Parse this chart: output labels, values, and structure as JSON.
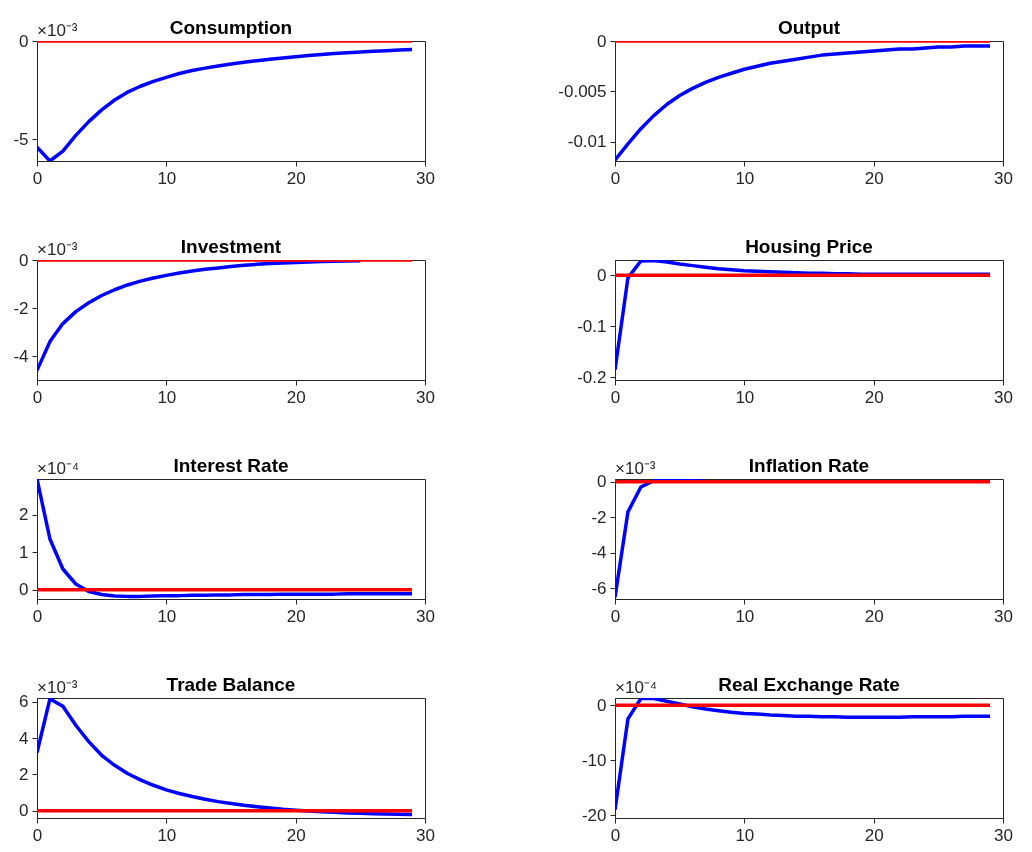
{
  "chart_data": [
    {
      "type": "line",
      "title": "Consumption",
      "annotations": [
        "×10⁻³"
      ],
      "x": [
        0,
        1,
        2,
        3,
        4,
        5,
        6,
        7,
        8,
        9,
        10,
        11,
        12,
        13,
        14,
        15,
        16,
        17,
        18,
        19,
        20,
        21,
        22,
        23,
        24,
        25,
        26,
        27,
        28,
        29
      ],
      "xlim": [
        0,
        30
      ],
      "xticks": [
        0,
        10,
        20,
        30
      ],
      "ylim": [
        -6.1,
        0
      ],
      "yticks": [
        -5,
        0
      ],
      "series": [
        {
          "color": "#0000ff",
          "values": [
            -5.4,
            -6.1,
            -5.6,
            -4.8,
            -4.1,
            -3.5,
            -3.0,
            -2.6,
            -2.3,
            -2.05,
            -1.85,
            -1.65,
            -1.5,
            -1.38,
            -1.27,
            -1.17,
            -1.08,
            -1.0,
            -0.93,
            -0.86,
            -0.8,
            -0.74,
            -0.69,
            -0.64,
            -0.6,
            -0.56,
            -0.52,
            -0.49,
            -0.46,
            -0.43
          ]
        },
        {
          "color": "#ff0000",
          "values": [
            0,
            0,
            0,
            0,
            0,
            0,
            0,
            0,
            0,
            0,
            0,
            0,
            0,
            0,
            0,
            0,
            0,
            0,
            0,
            0,
            0,
            0,
            0,
            0,
            0,
            0,
            0,
            0,
            0,
            0
          ]
        }
      ]
    },
    {
      "type": "line",
      "title": "Output",
      "x": [
        0,
        1,
        2,
        3,
        4,
        5,
        6,
        7,
        8,
        9,
        10,
        11,
        12,
        13,
        14,
        15,
        16,
        17,
        18,
        19,
        20,
        21,
        22,
        23,
        24,
        25,
        26,
        27,
        28,
        29
      ],
      "xlim": [
        0,
        30
      ],
      "xticks": [
        0,
        10,
        20,
        30
      ],
      "ylim": [
        -0.0119,
        0
      ],
      "yticks": [
        -0.01,
        -0.005,
        0
      ],
      "series": [
        {
          "color": "#0000ff",
          "values": [
            -0.0118,
            -0.0102,
            -0.0087,
            -0.0074,
            -0.0063,
            -0.0054,
            -0.0047,
            -0.0041,
            -0.0036,
            -0.0032,
            -0.0028,
            -0.0025,
            -0.0022,
            -0.002,
            -0.0018,
            -0.0016,
            -0.0014,
            -0.0013,
            -0.0012,
            -0.0011,
            -0.001,
            -0.0009,
            -0.0008,
            -0.0008,
            -0.0007,
            -0.0006,
            -0.0006,
            -0.0005,
            -0.0005,
            -0.0005
          ]
        },
        {
          "color": "#ff0000",
          "values": [
            0,
            0,
            0,
            0,
            0,
            0,
            0,
            0,
            0,
            0,
            0,
            0,
            0,
            0,
            0,
            0,
            0,
            0,
            0,
            0,
            0,
            0,
            0,
            0,
            0,
            0,
            0,
            0,
            0,
            0
          ]
        }
      ]
    },
    {
      "type": "line",
      "title": "Investment",
      "annotations": [
        "×10⁻³"
      ],
      "x": [
        0,
        1,
        2,
        3,
        4,
        5,
        6,
        7,
        8,
        9,
        10,
        11,
        12,
        13,
        14,
        15,
        16,
        17,
        18,
        19,
        20,
        21,
        22,
        23,
        24,
        25,
        26,
        27,
        28,
        29
      ],
      "xlim": [
        0,
        30
      ],
      "xticks": [
        0,
        10,
        20,
        30
      ],
      "ylim": [
        -5,
        0
      ],
      "yticks": [
        -4,
        -2,
        0
      ],
      "series": [
        {
          "color": "#0000ff",
          "values": [
            -4.6,
            -3.4,
            -2.65,
            -2.15,
            -1.78,
            -1.48,
            -1.24,
            -1.04,
            -0.88,
            -0.75,
            -0.64,
            -0.54,
            -0.46,
            -0.39,
            -0.33,
            -0.27,
            -0.22,
            -0.18,
            -0.15,
            -0.12,
            -0.1,
            -0.08,
            -0.06,
            -0.05,
            -0.04,
            -0.03,
            null,
            null,
            null,
            null
          ]
        },
        {
          "color": "#ff0000",
          "values": [
            0,
            0,
            0,
            0,
            0,
            0,
            0,
            0,
            0,
            0,
            0,
            0,
            0,
            0,
            0,
            0,
            0,
            0,
            0,
            0,
            0,
            0,
            0,
            0,
            0,
            0,
            0,
            0,
            0,
            0
          ]
        }
      ]
    },
    {
      "type": "line",
      "title": "Housing Price",
      "x": [
        0,
        1,
        2,
        3,
        4,
        5,
        6,
        7,
        8,
        9,
        10,
        11,
        12,
        13,
        14,
        15,
        16,
        17,
        18,
        19,
        20,
        21,
        22,
        23,
        24,
        25,
        26,
        27,
        28,
        29
      ],
      "xlim": [
        0,
        30
      ],
      "xticks": [
        0,
        10,
        20,
        30
      ],
      "ylim": [
        -0.205,
        0.03
      ],
      "yticks": [
        -0.2,
        -0.1,
        0
      ],
      "series": [
        {
          "color": "#0000ff",
          "values": [
            -0.185,
            -0.005,
            0.028,
            0.029,
            0.026,
            0.022,
            0.019,
            0.016,
            0.013,
            0.011,
            0.009,
            0.008,
            0.007,
            0.006,
            0.005,
            0.004,
            0.004,
            0.003,
            0.003,
            0.002,
            0.002,
            0.002,
            0.002,
            0.002,
            0.002,
            0.002,
            0.002,
            0.002,
            0.002,
            0.002
          ]
        },
        {
          "color": "#ff0000",
          "values": [
            0,
            0,
            0,
            0,
            0,
            0,
            0,
            0,
            0,
            0,
            0,
            0,
            0,
            0,
            0,
            0,
            0,
            0,
            0,
            0,
            0,
            0,
            0,
            0,
            0,
            0,
            0,
            0,
            0,
            0
          ]
        }
      ]
    },
    {
      "type": "line",
      "title": "Interest Rate",
      "annotations": [
        "×10⁻⁴"
      ],
      "x": [
        0,
        1,
        2,
        3,
        4,
        5,
        6,
        7,
        8,
        9,
        10,
        11,
        12,
        13,
        14,
        15,
        16,
        17,
        18,
        19,
        20,
        21,
        22,
        23,
        24,
        25,
        26,
        27,
        28,
        29
      ],
      "xlim": [
        0,
        30
      ],
      "xticks": [
        0,
        10,
        20,
        30
      ],
      "ylim": [
        -0.25,
        2.95
      ],
      "yticks": [
        0,
        1,
        2
      ],
      "series": [
        {
          "color": "#0000ff",
          "values": [
            2.95,
            1.35,
            0.55,
            0.15,
            -0.05,
            -0.13,
            -0.17,
            -0.18,
            -0.18,
            -0.17,
            -0.16,
            -0.16,
            -0.15,
            -0.15,
            -0.14,
            -0.14,
            -0.13,
            -0.13,
            -0.13,
            -0.12,
            -0.12,
            -0.12,
            -0.12,
            -0.12,
            -0.11,
            -0.11,
            -0.11,
            -0.11,
            -0.11,
            -0.11
          ]
        },
        {
          "color": "#ff0000",
          "values": [
            0,
            0,
            0,
            0,
            0,
            0,
            0,
            0,
            0,
            0,
            0,
            0,
            0,
            0,
            0,
            0,
            0,
            0,
            0,
            0,
            0,
            0,
            0,
            0,
            0,
            0,
            0,
            0,
            0,
            0
          ]
        }
      ]
    },
    {
      "type": "line",
      "title": "Inflation Rate",
      "annotations": [
        "×10⁻³"
      ],
      "x": [
        0,
        1,
        2,
        3,
        4,
        5,
        6,
        7,
        8,
        9,
        10,
        11,
        12,
        13,
        14,
        15,
        16,
        17,
        18,
        19,
        20,
        21,
        22,
        23,
        24,
        25,
        26,
        27,
        28,
        29
      ],
      "xlim": [
        0,
        30
      ],
      "xticks": [
        0,
        10,
        20,
        30
      ],
      "ylim": [
        -6.6,
        0.15
      ],
      "yticks": [
        -6,
        -4,
        -2,
        0
      ],
      "series": [
        {
          "color": "#0000ff",
          "values": [
            -6.5,
            -1.7,
            -0.3,
            0.05,
            0.1,
            0.08,
            0.05,
            0.03,
            null,
            null,
            null,
            null,
            null,
            null,
            null,
            null,
            null,
            null,
            null,
            null,
            null,
            null,
            null,
            null,
            null,
            null,
            null,
            null,
            null,
            null
          ]
        },
        {
          "color": "#ff0000",
          "values": [
            0,
            0,
            0,
            0,
            0,
            0,
            0,
            0,
            0,
            0,
            0,
            0,
            0,
            0,
            0,
            0,
            0,
            0,
            0,
            0,
            0,
            0,
            0,
            0,
            0,
            0,
            0,
            0,
            0,
            0
          ]
        }
      ]
    },
    {
      "type": "line",
      "title": "Trade Balance",
      "annotations": [
        "×10⁻³"
      ],
      "x": [
        0,
        1,
        2,
        3,
        4,
        5,
        6,
        7,
        8,
        9,
        10,
        11,
        12,
        13,
        14,
        15,
        16,
        17,
        18,
        19,
        20,
        21,
        22,
        23,
        24,
        25,
        26,
        27,
        28,
        29
      ],
      "xlim": [
        0,
        30
      ],
      "xticks": [
        0,
        10,
        20,
        30
      ],
      "ylim": [
        -0.4,
        6.2
      ],
      "yticks": [
        0,
        2,
        4,
        6
      ],
      "series": [
        {
          "color": "#0000ff",
          "values": [
            3.2,
            6.15,
            5.75,
            4.7,
            3.8,
            3.05,
            2.5,
            2.05,
            1.7,
            1.4,
            1.15,
            0.95,
            0.78,
            0.63,
            0.5,
            0.4,
            0.3,
            0.22,
            0.15,
            0.08,
            0.03,
            null,
            -0.06,
            -0.09,
            -0.12,
            -0.14,
            -0.16,
            -0.18,
            -0.2,
            -0.21
          ]
        },
        {
          "color": "#ff0000",
          "values": [
            0,
            0,
            0,
            0,
            0,
            0,
            0,
            0,
            0,
            0,
            0,
            0,
            0,
            0,
            0,
            0,
            0,
            0,
            0,
            0,
            0,
            0,
            0,
            0,
            0,
            0,
            0,
            0,
            0,
            0
          ]
        }
      ]
    },
    {
      "type": "line",
      "title": "Real Exchange Rate",
      "annotations": [
        "×10⁻⁴"
      ],
      "x": [
        0,
        1,
        2,
        3,
        4,
        5,
        6,
        7,
        8,
        9,
        10,
        11,
        12,
        13,
        14,
        15,
        16,
        17,
        18,
        19,
        20,
        21,
        22,
        23,
        24,
        25,
        26,
        27,
        28,
        29
      ],
      "xlim": [
        0,
        30
      ],
      "xticks": [
        0,
        10,
        20,
        30
      ],
      "ylim": [
        -20.5,
        1.3
      ],
      "yticks": [
        -20,
        -10,
        0
      ],
      "series": [
        {
          "color": "#0000ff",
          "values": [
            -19,
            -2.5,
            1.2,
            1.2,
            0.7,
            0.2,
            -0.3,
            -0.7,
            -1.0,
            -1.3,
            -1.5,
            -1.6,
            -1.8,
            -1.9,
            -2.0,
            -2.0,
            -2.1,
            -2.1,
            -2.2,
            -2.2,
            -2.2,
            -2.2,
            -2.2,
            -2.1,
            -2.1,
            -2.1,
            -2.1,
            -2.0,
            -2.0,
            -2.0
          ]
        },
        {
          "color": "#ff0000",
          "values": [
            0,
            0,
            0,
            0,
            0,
            0,
            0,
            0,
            0,
            0,
            0,
            0,
            0,
            0,
            0,
            0,
            0,
            0,
            0,
            0,
            0,
            0,
            0,
            0,
            0,
            0,
            0,
            0,
            0,
            0
          ]
        }
      ]
    }
  ]
}
